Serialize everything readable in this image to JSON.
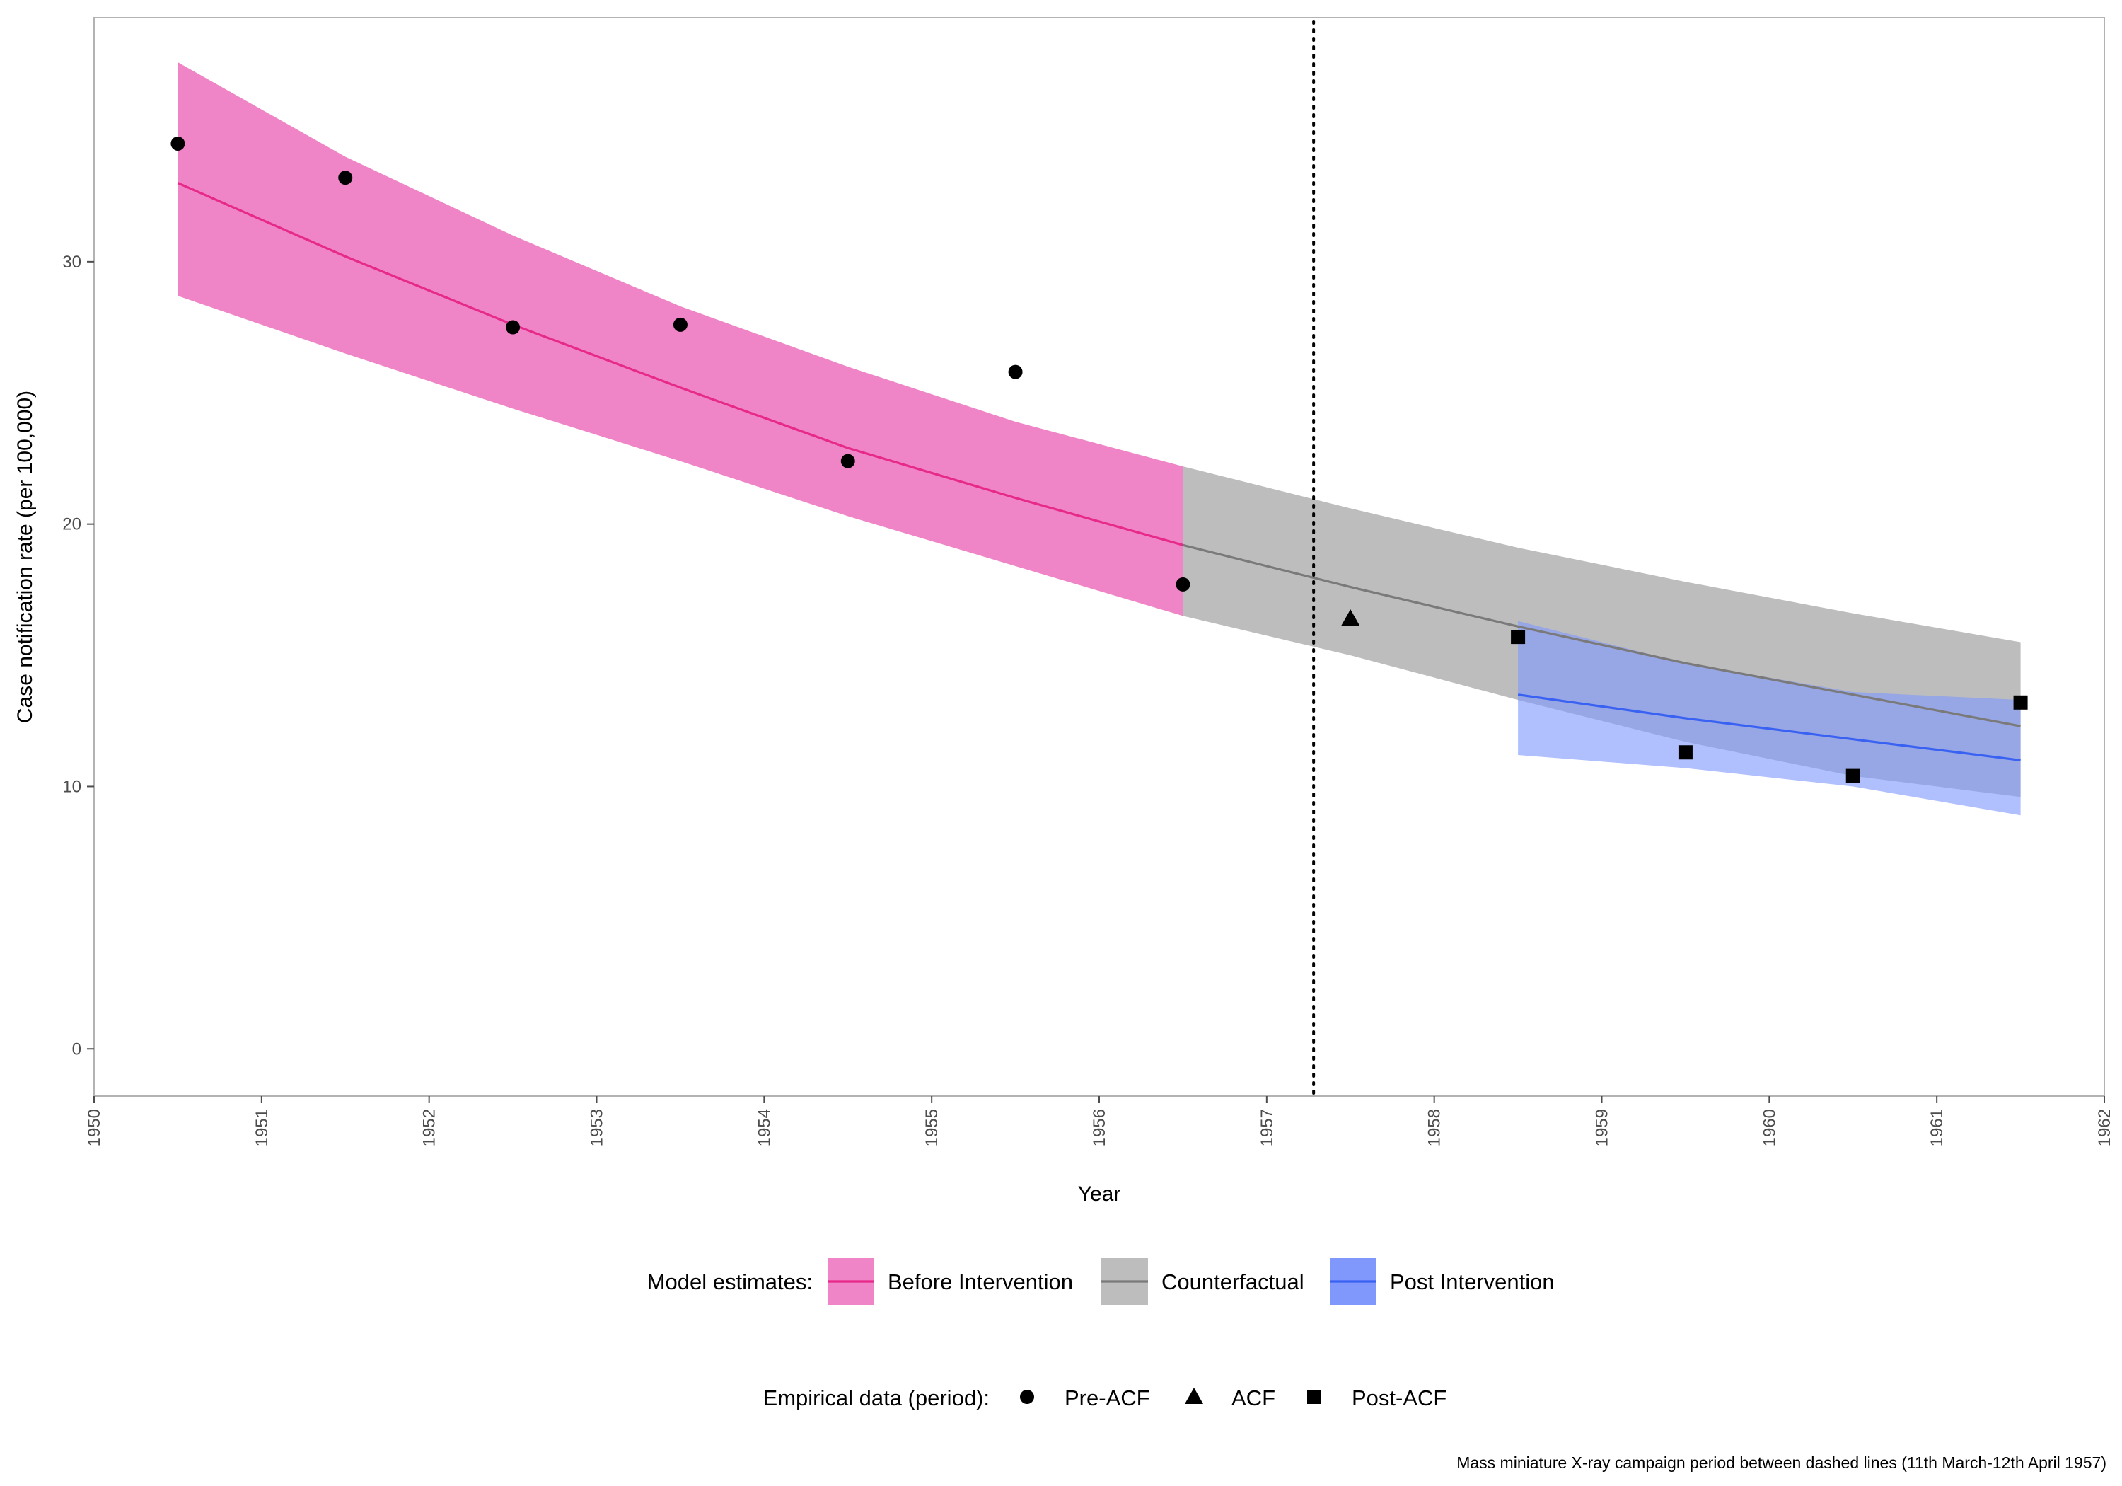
{
  "chart_data": {
    "type": "line",
    "xlabel": "Year",
    "ylabel": "Case notification rate (per 100,000)",
    "xlim": [
      1950,
      1962
    ],
    "ylim": [
      -1.8,
      39.3
    ],
    "x_ticks": [
      1950,
      1951,
      1952,
      1953,
      1954,
      1955,
      1956,
      1957,
      1958,
      1959,
      1960,
      1961,
      1962
    ],
    "y_ticks": [
      0,
      10,
      20,
      30
    ],
    "grid": false,
    "legend_position": "bottom",
    "campaign_marker": {
      "x": 1957.28,
      "style": "dotted"
    },
    "bands": [
      {
        "name": "Before Intervention",
        "color": "#e7298a",
        "fill_color": "#ef85c6",
        "x": [
          1950.5,
          1951.5,
          1952.5,
          1953.5,
          1954.5,
          1955.5,
          1956.5
        ],
        "y": [
          33.0,
          30.2,
          27.6,
          25.2,
          22.9,
          21.0,
          19.2
        ],
        "lower": [
          28.7,
          26.5,
          24.4,
          22.4,
          20.3,
          18.4,
          16.5
        ],
        "upper": [
          37.6,
          34.0,
          31.0,
          28.3,
          26.0,
          23.9,
          22.2
        ]
      },
      {
        "name": "Counterfactual",
        "color": "#7a7a7a",
        "fill_color": "#bdbdbd",
        "x": [
          1956.5,
          1957.5,
          1958.5,
          1959.5,
          1960.5,
          1961.5
        ],
        "y": [
          19.2,
          17.6,
          16.1,
          14.7,
          13.5,
          12.3
        ],
        "lower": [
          16.5,
          15.0,
          13.3,
          11.7,
          10.4,
          9.6
        ],
        "upper": [
          22.2,
          20.6,
          19.1,
          17.8,
          16.6,
          15.5
        ]
      },
      {
        "name": "Post Intervention",
        "color": "#3a62f2",
        "fill_color": "#8097fb",
        "x": [
          1958.5,
          1959.5,
          1960.5,
          1961.5
        ],
        "y": [
          13.5,
          12.6,
          11.8,
          11.0
        ],
        "lower": [
          11.2,
          10.7,
          10.0,
          8.9
        ],
        "upper": [
          16.3,
          14.7,
          13.6,
          13.3
        ]
      }
    ],
    "points": [
      {
        "period": "Pre-ACF",
        "shape": "circle",
        "x": [
          1950.5,
          1951.5,
          1952.5,
          1953.5,
          1954.5,
          1955.5,
          1956.5
        ],
        "y": [
          34.5,
          33.2,
          27.5,
          27.6,
          22.4,
          25.8,
          17.7
        ]
      },
      {
        "period": "ACF",
        "shape": "triangle",
        "x": [
          1957.5
        ],
        "y": [
          16.4
        ]
      },
      {
        "period": "Post-ACF",
        "shape": "square",
        "x": [
          1958.5,
          1959.5,
          1960.5,
          1961.5
        ],
        "y": [
          15.7,
          11.3,
          10.4,
          13.2
        ]
      }
    ],
    "legend": {
      "model_title": "Model estimates:",
      "model_items": [
        "Before Intervention",
        "Counterfactual",
        "Post Intervention"
      ],
      "empirical_title": "Empirical data (period):",
      "empirical_items": [
        "Pre-ACF",
        "ACF",
        "Post-ACF"
      ]
    },
    "caption": "Mass miniature X-ray campaign period between dashed lines (11th March-12th April 1957)"
  }
}
